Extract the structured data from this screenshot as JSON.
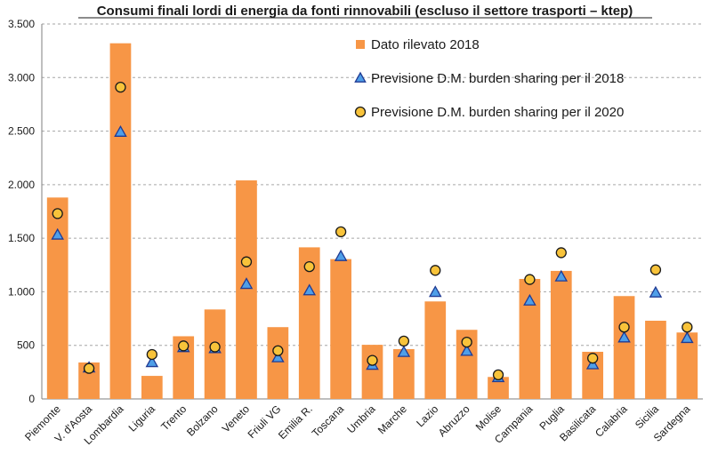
{
  "chart_data": {
    "type": "bar",
    "title": "Consumi finali lordi di energia da fonti rinnovabili (escluso il settore trasporti – ktep)",
    "xlabel": "",
    "ylabel": "",
    "ylim": [
      0,
      3500
    ],
    "yticks": [
      0,
      500,
      1000,
      1500,
      2000,
      2500,
      3000,
      3500
    ],
    "ytick_labels": [
      "0",
      "500",
      "1.000",
      "1.500",
      "2.000",
      "2.500",
      "3.000",
      "3.500"
    ],
    "grid": true,
    "legend_position": "top-right",
    "categories": [
      "Piemonte",
      "V. d'Aosta",
      "Lombardia",
      "Liguria",
      "Trento",
      "Bolzano",
      "Veneto",
      "Friuli VG",
      "Emilia R.",
      "Toscana",
      "Umbria",
      "Marche",
      "Lazio",
      "Abruzzo",
      "Molise",
      "Campania",
      "Puglia",
      "Basilicata",
      "Calabria",
      "Sicilia",
      "Sardegna"
    ],
    "series": [
      {
        "name": "Dato rilevato 2018",
        "kind": "bar",
        "color": "#f79646",
        "values": [
          1880,
          340,
          3320,
          215,
          585,
          835,
          2040,
          670,
          1415,
          1305,
          505,
          465,
          910,
          645,
          205,
          1120,
          1195,
          440,
          960,
          730,
          620
        ]
      },
      {
        "name": "Previsione D.M. burden sharing per il 2018",
        "kind": "triangle",
        "color": "#4f9fe8",
        "edge": "#1f3a93",
        "values": [
          1530,
          290,
          2490,
          340,
          480,
          470,
          1070,
          385,
          1010,
          1330,
          315,
          435,
          995,
          445,
          200,
          915,
          1140,
          320,
          570,
          990,
          565
        ]
      },
      {
        "name": "Previsione D.M. burden sharing per il 2020",
        "kind": "circle",
        "color": "#f8c33a",
        "edge": "#1a1a1a",
        "values": [
          1730,
          285,
          2910,
          415,
          495,
          485,
          1280,
          450,
          1235,
          1560,
          360,
          540,
          1200,
          530,
          225,
          1115,
          1365,
          380,
          670,
          1205,
          670
        ]
      }
    ]
  }
}
